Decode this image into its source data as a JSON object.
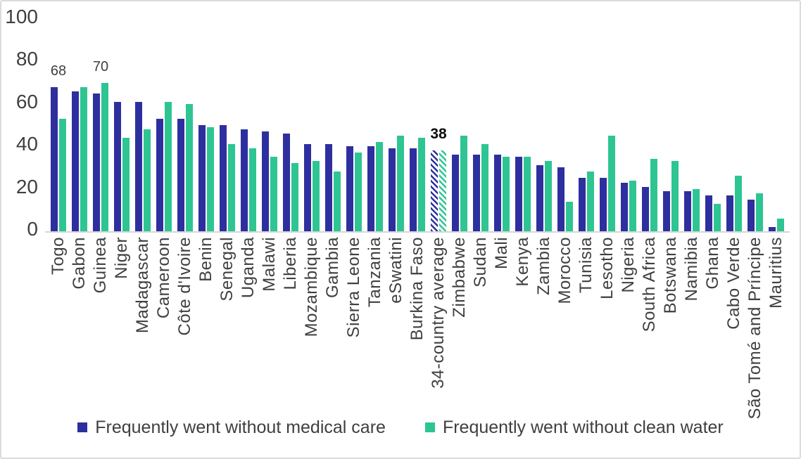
{
  "chart_data": {
    "type": "bar",
    "title": "",
    "xlabel": "",
    "ylabel": "",
    "ylim": [
      0,
      100
    ],
    "yticks": [
      0,
      20,
      40,
      60,
      80,
      100
    ],
    "grid": false,
    "legend_position": "bottom",
    "categories": [
      "Togo",
      "Gabon",
      "Guinea",
      "Niger",
      "Madagascar",
      "Cameroon",
      "Côte d'Ivoire",
      "Benin",
      "Senegal",
      "Uganda",
      "Malawi",
      "Liberia",
      "Mozambique",
      "Gambia",
      "Sierra Leone",
      "Tanzania",
      "eSwatini",
      "Burkina Faso",
      "34-country average",
      "Zimbabwe",
      "Sudan",
      "Mali",
      "Kenya",
      "Zambia",
      "Morocco",
      "Tunisia",
      "Lesotho",
      "Nigeria",
      "South Africa",
      "Botswana",
      "Namibia",
      "Ghana",
      "Cabo Verde",
      "São Tomé and Príncipe",
      "Mauritius"
    ],
    "series": [
      {
        "name": "Frequently went without medical care",
        "color": "#2E2F9F",
        "values": [
          68,
          66,
          65,
          61,
          61,
          53,
          53,
          50,
          50,
          48,
          47,
          46,
          41,
          41,
          40,
          40,
          39,
          39,
          38,
          36,
          36,
          36,
          35,
          31,
          30,
          25,
          25,
          23,
          21,
          19,
          19,
          17,
          17,
          15,
          2
        ]
      },
      {
        "name": "Frequently went without clean water",
        "color": "#2EC593",
        "values": [
          53,
          68,
          70,
          44,
          48,
          61,
          60,
          49,
          41,
          39,
          35,
          32,
          33,
          28,
          37,
          42,
          45,
          44,
          38,
          45,
          41,
          35,
          35,
          33,
          14,
          28,
          45,
          24,
          34,
          33,
          20,
          13,
          26,
          18,
          6
        ]
      }
    ],
    "highlight_category": "34-country average",
    "highlight_style": "diagonal-hatch",
    "data_labels": [
      {
        "category_index": 0,
        "text": "68",
        "bold": false
      },
      {
        "category_index": 2,
        "text": "70",
        "bold": false
      },
      {
        "category_index": 18,
        "text": "38",
        "bold": true
      }
    ],
    "axis_line_color": "#D6D6D6",
    "text_color": "#3F3F3F"
  }
}
